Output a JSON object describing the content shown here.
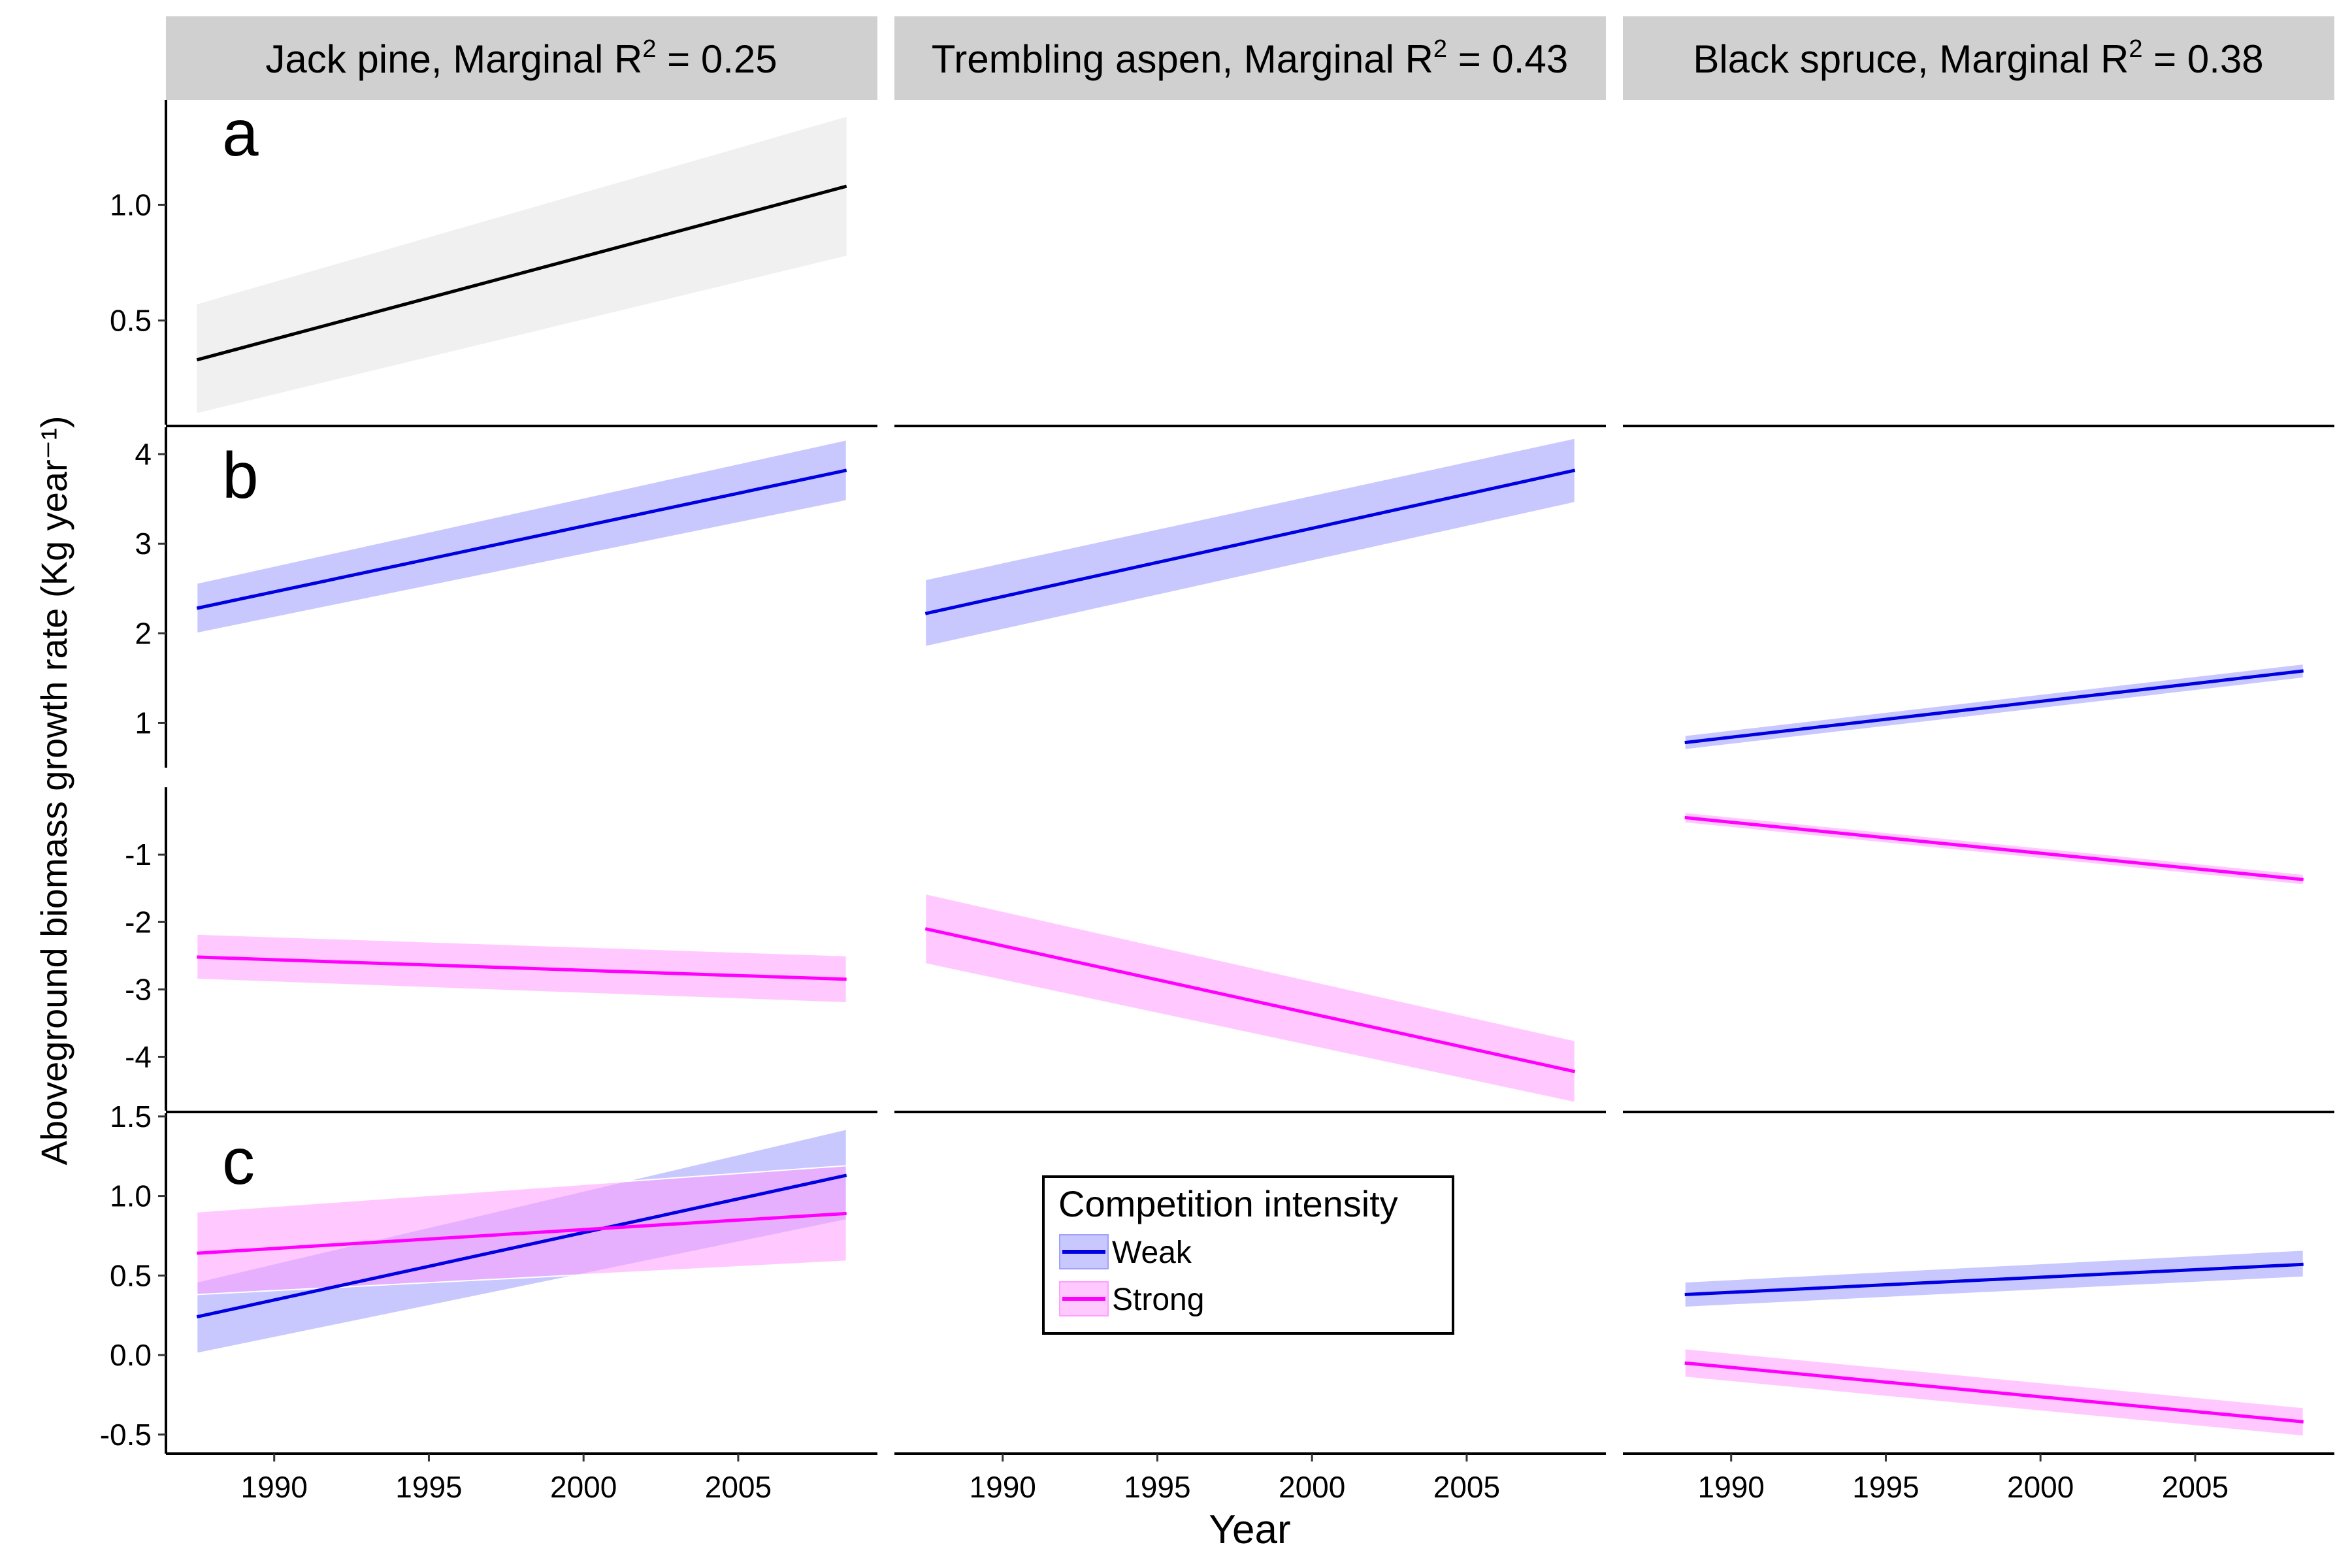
{
  "figure": {
    "x_axis_title": "Year",
    "y_axis_title": "Aboveground biomass growth rate (Kg year⁻¹)"
  },
  "strips": [
    {
      "species": "Jack pine",
      "r2_prefix": ", Marginal R",
      "r2_sup": "2",
      "r2_value": " = 0.25"
    },
    {
      "species": "Trembling aspen",
      "r2_prefix": ", Marginal R",
      "r2_sup": "2",
      "r2_value": " = 0.43"
    },
    {
      "species": "Black spruce",
      "r2_prefix": ", Marginal R",
      "r2_sup": "2",
      "r2_value": " = 0.38"
    }
  ],
  "panel_letters": {
    "a": "a",
    "b": "b",
    "c": "c"
  },
  "legend": {
    "title": "Competition intensity",
    "items": [
      {
        "label": "Weak",
        "color": "#0000e0",
        "fill": "#c8c8ff"
      },
      {
        "label": "Strong",
        "color": "#ff00ff",
        "fill": "#ffc8ff"
      }
    ]
  },
  "colors": {
    "neutral_line": "#000000",
    "neutral_band": "#f0f0f0",
    "weak": "#0000e0",
    "strong": "#ff00ff"
  },
  "chart_data": {
    "type": "line",
    "x_ticks": [
      "1990",
      "1995",
      "2000",
      "2005"
    ],
    "xlim": [
      1986.5,
      2009.5
    ],
    "rows": [
      {
        "id": "a",
        "ylim": [
          0.05,
          1.45
        ],
        "y_ticks": [
          "0.5",
          "1.0"
        ],
        "y_tick_values": [
          0.5,
          1.0
        ]
      },
      {
        "id": "b_pos",
        "ylim": [
          0.5,
          4.3
        ],
        "y_ticks": [
          "1",
          "2",
          "3",
          "4"
        ],
        "y_tick_values": [
          1,
          2,
          3,
          4
        ]
      },
      {
        "id": "b_neg",
        "ylim": [
          -4.8,
          0.0
        ],
        "y_ticks": [
          "-1",
          "-2",
          "-3",
          "-4"
        ],
        "y_tick_values": [
          -1,
          -2,
          -3,
          -4
        ]
      },
      {
        "id": "c",
        "ylim": [
          -0.62,
          1.52
        ],
        "y_ticks": [
          "1.5",
          "1.0",
          "0.5",
          "0.0",
          "-0.5"
        ],
        "y_tick_values": [
          1.5,
          1.0,
          0.5,
          0.0,
          -0.5
        ]
      }
    ],
    "series": [
      {
        "row": "a",
        "col": 0,
        "group": "all",
        "x": [
          1987.5,
          2008.5
        ],
        "y": [
          0.33,
          1.08
        ],
        "lower": [
          0.1,
          0.78
        ],
        "upper": [
          0.57,
          1.38
        ]
      },
      {
        "row": "b_pos",
        "col": 0,
        "group": "Weak",
        "x": [
          1987.5,
          2008.5
        ],
        "y": [
          2.28,
          3.82
        ],
        "lower": [
          2.0,
          3.48
        ],
        "upper": [
          2.56,
          4.16
        ]
      },
      {
        "row": "b_pos",
        "col": 1,
        "group": "Weak",
        "x": [
          1987.5,
          2008.5
        ],
        "y": [
          2.22,
          3.82
        ],
        "lower": [
          1.85,
          3.46
        ],
        "upper": [
          2.6,
          4.18
        ]
      },
      {
        "row": "b_pos",
        "col": 2,
        "group": "Weak",
        "x": [
          1988.5,
          2008.5
        ],
        "y": [
          0.78,
          1.58
        ],
        "lower": [
          0.7,
          1.5
        ],
        "upper": [
          0.86,
          1.66
        ]
      },
      {
        "row": "b_neg",
        "col": 0,
        "group": "Strong",
        "x": [
          1987.5,
          2008.5
        ],
        "y": [
          -2.52,
          -2.85
        ],
        "lower": [
          -2.85,
          -3.2
        ],
        "upper": [
          -2.18,
          -2.5
        ]
      },
      {
        "row": "b_neg",
        "col": 1,
        "group": "Strong",
        "x": [
          1987.5,
          2008.5
        ],
        "y": [
          -2.1,
          -4.22
        ],
        "lower": [
          -2.62,
          -4.68
        ],
        "upper": [
          -1.58,
          -3.76
        ]
      },
      {
        "row": "b_neg",
        "col": 2,
        "group": "Strong",
        "x": [
          1988.5,
          2008.5
        ],
        "y": [
          -0.45,
          -1.37
        ],
        "lower": [
          -0.53,
          -1.45
        ],
        "upper": [
          -0.37,
          -1.29
        ]
      },
      {
        "row": "c",
        "col": 0,
        "group": "Weak",
        "x": [
          1987.5,
          2008.5
        ],
        "y": [
          0.24,
          1.13
        ],
        "lower": [
          0.01,
          0.85
        ],
        "upper": [
          0.46,
          1.42
        ]
      },
      {
        "row": "c",
        "col": 0,
        "group": "Strong",
        "x": [
          1987.5,
          2008.5
        ],
        "y": [
          0.64,
          0.89
        ],
        "lower": [
          0.38,
          0.59
        ],
        "upper": [
          0.9,
          1.19
        ]
      },
      {
        "row": "c",
        "col": 2,
        "group": "Weak",
        "x": [
          1988.5,
          2008.5
        ],
        "y": [
          0.38,
          0.57
        ],
        "lower": [
          0.3,
          0.49
        ],
        "upper": [
          0.46,
          0.66
        ]
      },
      {
        "row": "c",
        "col": 2,
        "group": "Strong",
        "x": [
          1988.5,
          2008.5
        ],
        "y": [
          -0.05,
          -0.42
        ],
        "lower": [
          -0.14,
          -0.51
        ],
        "upper": [
          0.04,
          -0.33
        ]
      }
    ]
  }
}
